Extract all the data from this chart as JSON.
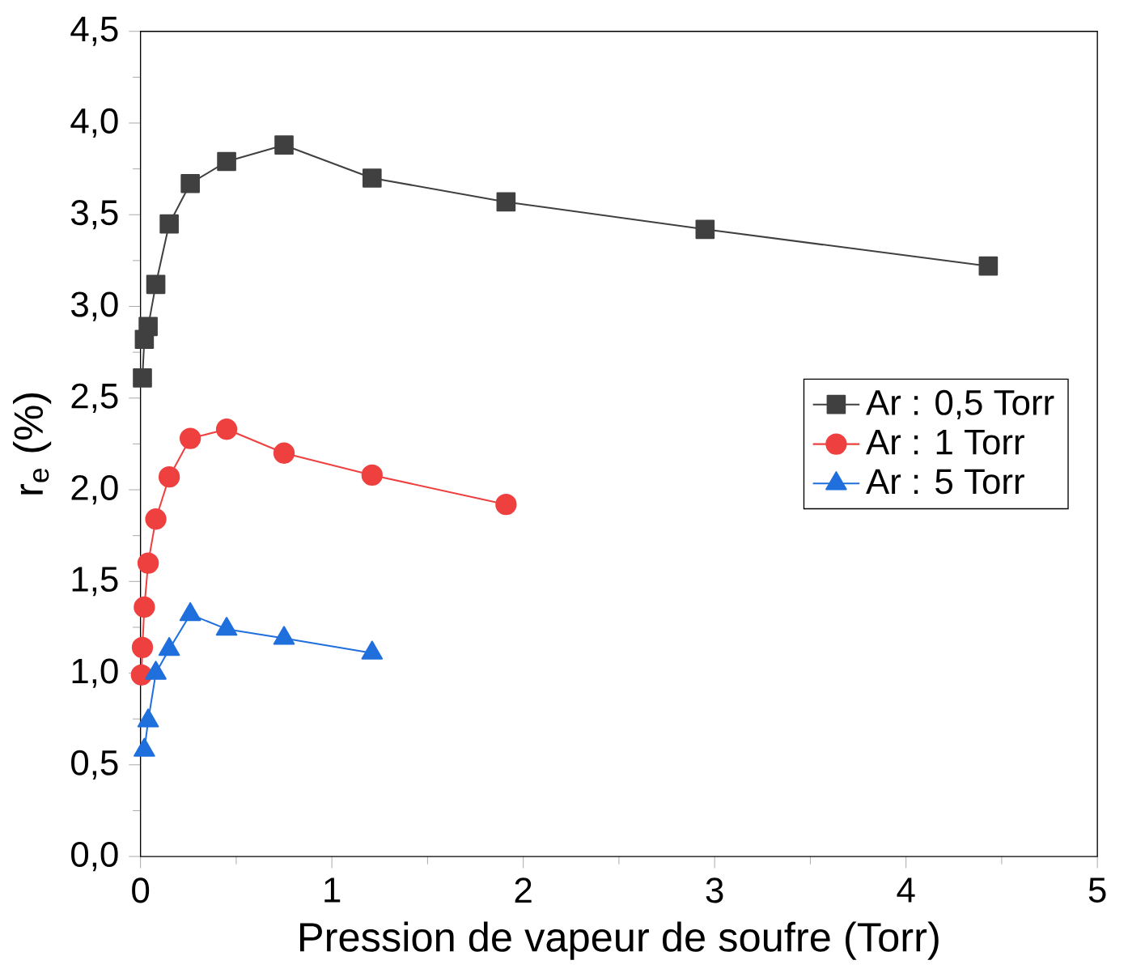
{
  "chart_data": {
    "type": "line",
    "xlabel": "Pression de vapeur de soufre (Torr)",
    "ylabel": "r$_{e}$ (%)",
    "xlim": [
      0,
      5
    ],
    "ylim": [
      0,
      4.5
    ],
    "xticks": [
      0,
      1,
      2,
      3,
      4,
      5
    ],
    "yticks": [
      {
        "value": 0,
        "label": "0,0"
      },
      {
        "value": 0.5,
        "label": "0,5"
      },
      {
        "value": 1,
        "label": "1,0"
      },
      {
        "value": 1.5,
        "label": "1,5"
      },
      {
        "value": 2,
        "label": "2,0"
      },
      {
        "value": 2.5,
        "label": "2,5"
      },
      {
        "value": 3,
        "label": "3,0"
      },
      {
        "value": 3.5,
        "label": "3,5"
      },
      {
        "value": 4,
        "label": "4,0"
      },
      {
        "value": 4.5,
        "label": "4,5"
      }
    ],
    "legend": "right",
    "grid": false,
    "line_style": "solid",
    "series": [
      {
        "name": "Ar : 0,5 Torr",
        "color": "#404040",
        "marker": "square",
        "x": [
          0.01,
          0.02,
          0.04,
          0.08,
          0.15,
          0.26,
          0.45,
          0.75,
          1.21,
          1.91,
          2.95,
          4.43
        ],
        "values": [
          2.61,
          2.82,
          2.89,
          3.12,
          3.45,
          3.67,
          3.79,
          3.88,
          3.7,
          3.57,
          3.42,
          3.22
        ]
      },
      {
        "name": "Ar : 1 Torr",
        "color": "#ef4040",
        "marker": "circle",
        "x": [
          0.005,
          0.01,
          0.02,
          0.04,
          0.08,
          0.15,
          0.26,
          0.45,
          0.75,
          1.21,
          1.91
        ],
        "values": [
          0.99,
          1.14,
          1.36,
          1.6,
          1.84,
          2.07,
          2.28,
          2.33,
          2.2,
          2.08,
          1.92
        ]
      },
      {
        "name": "Ar : 5 Torr",
        "color": "#1f6fdd",
        "marker": "triangle",
        "x": [
          0.02,
          0.04,
          0.08,
          0.15,
          0.26,
          0.45,
          0.75,
          1.21
        ],
        "values": [
          0.58,
          0.74,
          1.0,
          1.13,
          1.32,
          1.24,
          1.19,
          1.11
        ]
      }
    ]
  }
}
